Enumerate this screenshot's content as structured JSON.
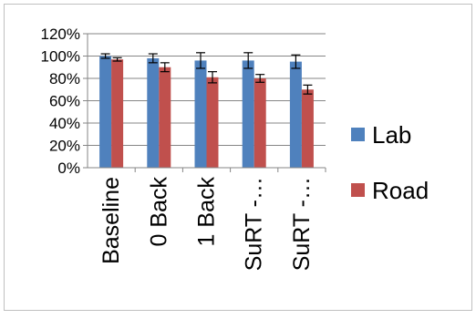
{
  "chart_data": {
    "type": "bar",
    "categories": [
      "Baseline",
      "0 Back",
      "1 Back",
      "SuRT -…",
      "SuRT -…"
    ],
    "series": [
      {
        "name": "Lab",
        "color": "#4f81bd",
        "values": [
          100,
          98,
          96,
          96,
          95
        ],
        "errors": [
          2,
          4,
          7,
          7,
          6
        ]
      },
      {
        "name": "Road",
        "color": "#c0504d",
        "values": [
          97,
          90,
          81,
          80,
          70
        ],
        "errors": [
          1.5,
          4,
          5,
          3.5,
          4
        ]
      }
    ],
    "ylim": [
      0,
      120
    ],
    "yticks": [
      "0%",
      "20%",
      "40%",
      "60%",
      "80%",
      "100%",
      "120%"
    ],
    "grid": true,
    "legend_position": "right"
  }
}
